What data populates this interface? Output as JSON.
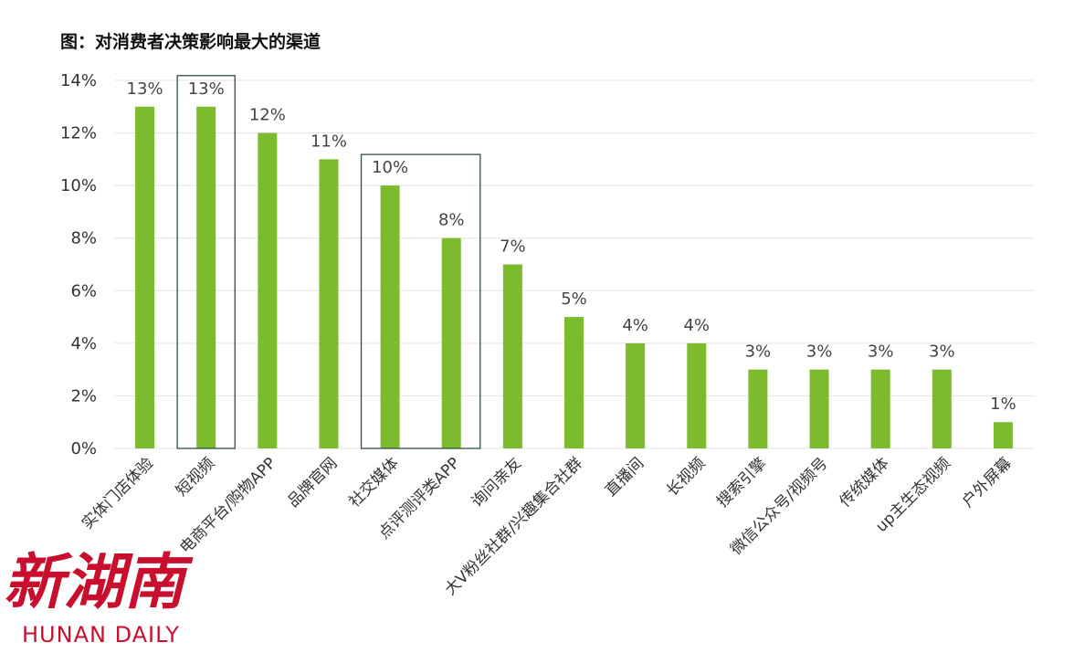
{
  "colors": {
    "bar": "#7dbb2e",
    "grid": "#e3e3e3",
    "highlight_box": "#2e4f4a",
    "watermark": "#c8102e"
  },
  "watermark": {
    "chinese": "新湖南",
    "english": "HUNAN DAILY"
  },
  "chart_data": {
    "type": "bar",
    "title": "图：对消费者决策影响最大的渠道",
    "xlabel": "",
    "ylabel": "",
    "ylim": [
      0,
      14
    ],
    "yticks": [
      "0%",
      "2%",
      "4%",
      "6%",
      "8%",
      "10%",
      "12%",
      "14%"
    ],
    "grid": "horizontal",
    "categories": [
      "实体门店体验",
      "短视频",
      "电商平台/购物APP",
      "品牌官网",
      "社交媒体",
      "点评测评类APP",
      "询问亲友",
      "大V粉丝社群/兴趣集合社群",
      "直播间",
      "长视频",
      "搜索引擎",
      "微信公众号/视频号",
      "传统媒体",
      "up主生态视频",
      "户外屏幕"
    ],
    "values": [
      13,
      13,
      12,
      11,
      10,
      8,
      7,
      5,
      4,
      4,
      3,
      3,
      3,
      3,
      1
    ],
    "value_labels": [
      "13%",
      "13%",
      "12%",
      "11%",
      "10%",
      "8%",
      "7%",
      "5%",
      "4%",
      "4%",
      "3%",
      "3%",
      "3%",
      "3%",
      "1%"
    ],
    "highlight_groups": [
      [
        1
      ],
      [
        4,
        5
      ]
    ]
  }
}
